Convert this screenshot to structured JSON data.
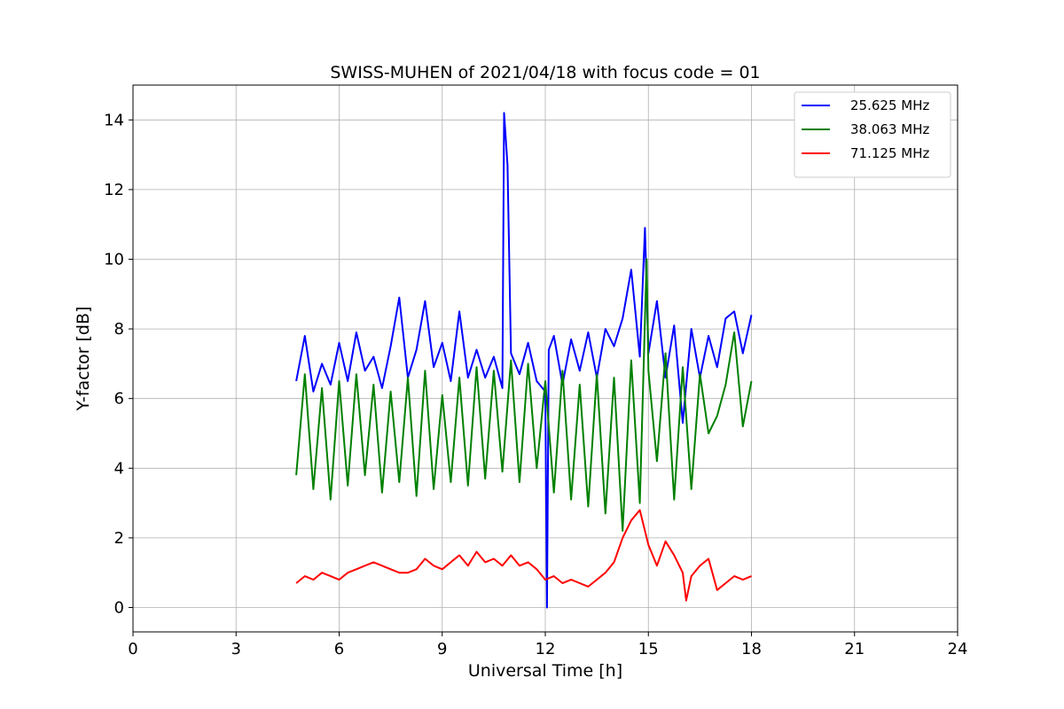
{
  "chart_data": {
    "type": "line",
    "title": "SWISS-MUHEN of 2021/04/18 with focus code = 01",
    "xlabel": "Universal Time [h]",
    "ylabel": "Y-factor [dB]",
    "xlim": [
      0,
      24
    ],
    "ylim": [
      -0.7,
      15
    ],
    "xticks": [
      0,
      3,
      6,
      9,
      12,
      15,
      18,
      21,
      24
    ],
    "yticks": [
      0,
      2,
      4,
      6,
      8,
      10,
      12,
      14
    ],
    "grid": true,
    "legend_position": "top-right",
    "series": [
      {
        "name": "25.625 MHz",
        "color": "#0000ff",
        "x": [
          4.75,
          5.0,
          5.25,
          5.5,
          5.75,
          6.0,
          6.25,
          6.5,
          6.75,
          7.0,
          7.25,
          7.5,
          7.75,
          8.0,
          8.25,
          8.5,
          8.75,
          9.0,
          9.25,
          9.5,
          9.75,
          10.0,
          10.25,
          10.5,
          10.75,
          10.8,
          10.9,
          11.0,
          11.25,
          11.5,
          11.75,
          12.0,
          12.05,
          12.1,
          12.25,
          12.5,
          12.75,
          13.0,
          13.25,
          13.5,
          13.75,
          14.0,
          14.25,
          14.5,
          14.75,
          14.9,
          15.0,
          15.25,
          15.5,
          15.75,
          16.0,
          16.25,
          16.5,
          16.75,
          17.0,
          17.25,
          17.5,
          17.75,
          18.0
        ],
        "y": [
          6.5,
          7.8,
          6.2,
          7.0,
          6.4,
          7.6,
          6.5,
          7.9,
          6.8,
          7.2,
          6.3,
          7.5,
          8.9,
          6.6,
          7.4,
          8.8,
          6.9,
          7.6,
          6.5,
          8.5,
          6.6,
          7.4,
          6.6,
          7.2,
          6.3,
          14.2,
          12.7,
          7.3,
          6.7,
          7.6,
          6.5,
          6.2,
          0.0,
          7.4,
          7.8,
          6.4,
          7.7,
          6.8,
          7.9,
          6.6,
          8.0,
          7.5,
          8.3,
          9.7,
          7.2,
          10.9,
          7.3,
          8.8,
          6.6,
          8.1,
          5.3,
          8.0,
          6.6,
          7.8,
          6.9,
          8.3,
          8.5,
          7.3,
          8.4
        ]
      },
      {
        "name": "38.063 MHz",
        "color": "#008000",
        "x": [
          4.75,
          5.0,
          5.25,
          5.5,
          5.75,
          6.0,
          6.25,
          6.5,
          6.75,
          7.0,
          7.25,
          7.5,
          7.75,
          8.0,
          8.25,
          8.5,
          8.75,
          9.0,
          9.25,
          9.5,
          9.75,
          10.0,
          10.25,
          10.5,
          10.75,
          11.0,
          11.25,
          11.5,
          11.75,
          12.0,
          12.25,
          12.5,
          12.75,
          13.0,
          13.25,
          13.5,
          13.75,
          14.0,
          14.25,
          14.5,
          14.75,
          14.95,
          15.0,
          15.25,
          15.5,
          15.75,
          16.0,
          16.25,
          16.5,
          16.75,
          17.0,
          17.25,
          17.5,
          17.75,
          18.0
        ],
        "y": [
          3.8,
          6.7,
          3.4,
          6.3,
          3.1,
          6.5,
          3.5,
          6.7,
          3.8,
          6.4,
          3.3,
          6.2,
          3.6,
          6.6,
          3.2,
          6.8,
          3.4,
          6.1,
          3.6,
          6.6,
          3.5,
          6.9,
          3.7,
          6.8,
          3.9,
          7.1,
          3.6,
          7.0,
          4.0,
          6.5,
          3.3,
          6.8,
          3.1,
          6.4,
          2.9,
          6.7,
          2.7,
          6.6,
          2.2,
          7.1,
          3.0,
          10.0,
          6.8,
          4.2,
          7.3,
          3.1,
          6.9,
          3.4,
          6.7,
          5.0,
          5.5,
          6.4,
          7.9,
          5.2,
          6.5
        ]
      },
      {
        "name": "71.125 MHz",
        "color": "#ff0000",
        "x": [
          4.75,
          5.0,
          5.25,
          5.5,
          5.75,
          6.0,
          6.25,
          6.5,
          6.75,
          7.0,
          7.25,
          7.5,
          7.75,
          8.0,
          8.25,
          8.5,
          8.75,
          9.0,
          9.25,
          9.5,
          9.75,
          10.0,
          10.25,
          10.5,
          10.75,
          11.0,
          11.25,
          11.5,
          11.75,
          12.0,
          12.25,
          12.5,
          12.75,
          13.0,
          13.25,
          13.5,
          13.75,
          14.0,
          14.25,
          14.5,
          14.75,
          15.0,
          15.25,
          15.5,
          15.75,
          16.0,
          16.1,
          16.25,
          16.5,
          16.75,
          17.0,
          17.25,
          17.5,
          17.75,
          18.0
        ],
        "y": [
          0.7,
          0.9,
          0.8,
          1.0,
          0.9,
          0.8,
          1.0,
          1.1,
          1.2,
          1.3,
          1.2,
          1.1,
          1.0,
          1.0,
          1.1,
          1.4,
          1.2,
          1.1,
          1.3,
          1.5,
          1.2,
          1.6,
          1.3,
          1.4,
          1.2,
          1.5,
          1.2,
          1.3,
          1.1,
          0.8,
          0.9,
          0.7,
          0.8,
          0.7,
          0.6,
          0.8,
          1.0,
          1.3,
          2.0,
          2.5,
          2.8,
          1.8,
          1.2,
          1.9,
          1.5,
          1.0,
          0.2,
          0.9,
          1.2,
          1.4,
          0.5,
          0.7,
          0.9,
          0.8,
          0.9
        ]
      }
    ]
  }
}
